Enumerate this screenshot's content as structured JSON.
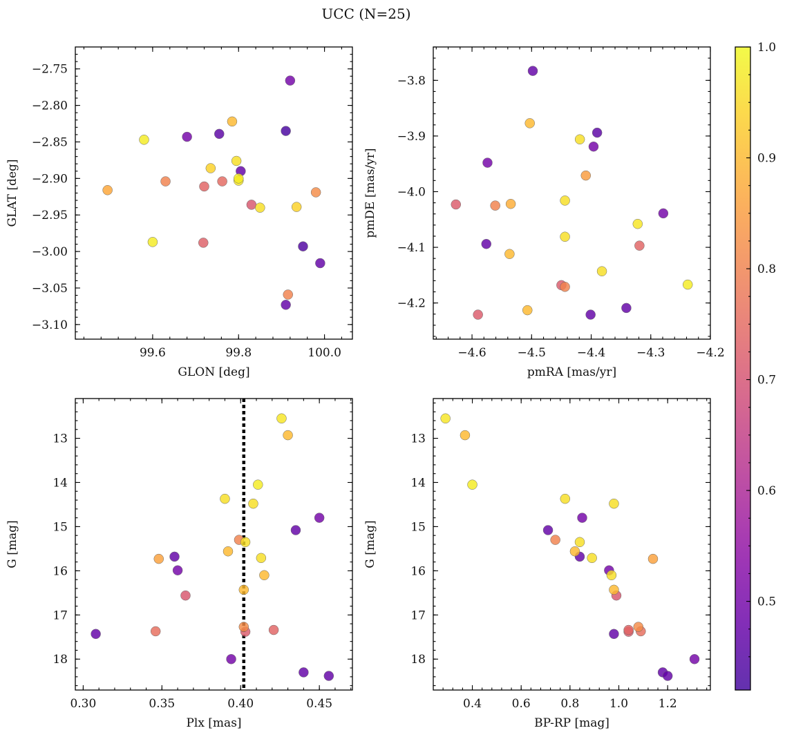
{
  "figure": {
    "title": "UCC (N=25)"
  },
  "colorbar": {
    "ticks": [
      "0.5",
      "0.6",
      "0.7",
      "0.8",
      "0.9",
      "1.0"
    ],
    "tick_values": [
      0.5,
      0.6,
      0.7,
      0.8,
      0.9,
      1.0
    ],
    "range": [
      0.42,
      1.0
    ],
    "colormap": "plasma"
  },
  "chart_data": [
    {
      "type": "scatter",
      "id": "glon-glat",
      "xlabel": "GLON [deg]",
      "ylabel": "GLAT [deg]",
      "xlim": [
        99.42,
        100.065
      ],
      "ylim": [
        -3.12,
        -2.72
      ],
      "y_inverted": false,
      "xticks": [
        99.6,
        99.8,
        100.0
      ],
      "xtick_labels": [
        "99.6",
        "99.8",
        "100.0"
      ],
      "yticks": [
        -2.75,
        -2.8,
        -2.85,
        -2.9,
        -2.95,
        -3.0,
        -3.05,
        -3.1
      ],
      "ytick_labels": [
        "−2.75",
        "−2.80",
        "−2.85",
        "−2.90",
        "−2.95",
        "−3.00",
        "−3.05",
        "−3.10"
      ],
      "x": [
        99.92,
        99.785,
        99.58,
        99.68,
        99.755,
        99.91,
        99.735,
        99.795,
        99.805,
        99.8,
        99.495,
        99.63,
        99.72,
        99.762,
        99.98,
        99.83,
        99.85,
        99.935,
        99.6,
        99.718,
        99.95,
        99.99,
        99.915,
        99.91,
        99.8
      ],
      "y": [
        -2.766,
        -2.822,
        -2.847,
        -2.843,
        -2.839,
        -2.835,
        -2.886,
        -2.876,
        -2.89,
        -2.903,
        -2.916,
        -2.904,
        -2.911,
        -2.904,
        -2.919,
        -2.936,
        -2.94,
        -2.939,
        -2.987,
        -2.988,
        -2.993,
        -3.016,
        -3.059,
        -3.073,
        -2.9
      ],
      "c": [
        0.5,
        0.9,
        0.98,
        0.5,
        0.46,
        0.43,
        0.94,
        0.96,
        0.47,
        0.97,
        0.87,
        0.8,
        0.74,
        0.75,
        0.82,
        0.71,
        0.96,
        0.94,
        0.98,
        0.73,
        0.44,
        0.47,
        0.8,
        0.47,
        0.98
      ]
    },
    {
      "type": "scatter",
      "id": "pmra-pmde",
      "xlabel": "pmRA [mas/yr]",
      "ylabel": "pmDE [mas/yr]",
      "xlim": [
        -4.665,
        -4.2
      ],
      "ylim": [
        -4.265,
        -3.74
      ],
      "y_inverted": false,
      "xticks": [
        -4.6,
        -4.5,
        -4.4,
        -4.3,
        -4.2
      ],
      "xtick_labels": [
        "−4.6",
        "−4.5",
        "−4.4",
        "−4.3",
        "−4.2"
      ],
      "yticks": [
        -3.8,
        -3.9,
        -4.0,
        -4.1,
        -4.2
      ],
      "ytick_labels": [
        "−3.8",
        "−3.9",
        "−4.0",
        "−4.1",
        "−4.2"
      ],
      "x": [
        -4.498,
        -4.503,
        -4.39,
        -4.419,
        -4.396,
        -4.574,
        -4.409,
        -4.627,
        -4.561,
        -4.535,
        -4.444,
        -4.279,
        -4.322,
        -4.444,
        -4.319,
        -4.576,
        -4.537,
        -4.382,
        -4.238,
        -4.45,
        -4.444,
        -4.341,
        -4.507,
        -4.59,
        -4.401
      ],
      "y": [
        -3.783,
        -3.877,
        -3.894,
        -3.906,
        -3.919,
        -3.948,
        -3.971,
        -4.023,
        -4.025,
        -4.022,
        -4.016,
        -4.039,
        -4.058,
        -4.081,
        -4.097,
        -4.094,
        -4.112,
        -4.143,
        -4.167,
        -4.168,
        -4.171,
        -4.209,
        -4.213,
        -4.221,
        -4.221
      ],
      "c": [
        0.47,
        0.9,
        0.46,
        0.96,
        0.5,
        0.5,
        0.85,
        0.72,
        0.8,
        0.88,
        0.96,
        0.5,
        0.97,
        0.96,
        0.74,
        0.47,
        0.9,
        0.96,
        0.98,
        0.72,
        0.8,
        0.47,
        0.9,
        0.72,
        0.47
      ]
    },
    {
      "type": "scatter",
      "id": "plx-g",
      "xlabel": "Plx [mas]",
      "ylabel": "G [mag]",
      "xlim": [
        0.295,
        0.471
      ],
      "ylim": [
        18.7,
        12.1
      ],
      "y_inverted": true,
      "xticks": [
        0.3,
        0.35,
        0.4,
        0.45
      ],
      "xtick_labels": [
        "0.30",
        "0.35",
        "0.40",
        "0.45"
      ],
      "yticks": [
        13,
        14,
        15,
        16,
        17,
        18
      ],
      "ytick_labels": [
        "13",
        "14",
        "15",
        "16",
        "17",
        "18"
      ],
      "vline_x": 0.402,
      "x": [
        0.426,
        0.43,
        0.411,
        0.39,
        0.408,
        0.45,
        0.435,
        0.399,
        0.403,
        0.392,
        0.358,
        0.348,
        0.413,
        0.36,
        0.415,
        0.402,
        0.365,
        0.402,
        0.308,
        0.346,
        0.403,
        0.421,
        0.394,
        0.44,
        0.456
      ],
      "y": [
        12.55,
        12.93,
        14.05,
        14.37,
        14.48,
        14.8,
        15.08,
        15.3,
        15.35,
        15.56,
        15.68,
        15.73,
        15.71,
        15.99,
        16.1,
        16.43,
        16.56,
        17.27,
        17.43,
        17.37,
        17.38,
        17.34,
        18.0,
        18.3,
        18.38
      ],
      "c": [
        0.97,
        0.9,
        0.98,
        0.96,
        0.96,
        0.5,
        0.47,
        0.8,
        0.96,
        0.9,
        0.47,
        0.86,
        0.96,
        0.5,
        0.9,
        0.9,
        0.71,
        0.82,
        0.47,
        0.76,
        0.72,
        0.74,
        0.5,
        0.47,
        0.47
      ]
    },
    {
      "type": "scatter",
      "id": "bprp-g",
      "xlabel": "BP-RP [mag]",
      "ylabel": "G [mag]",
      "xlim": [
        0.24,
        1.375
      ],
      "ylim": [
        18.7,
        12.1
      ],
      "y_inverted": true,
      "xticks": [
        0.4,
        0.6,
        0.8,
        1.0,
        1.2
      ],
      "xtick_labels": [
        "0.4",
        "0.6",
        "0.8",
        "1.0",
        "1.2"
      ],
      "yticks": [
        13,
        14,
        15,
        16,
        17,
        18
      ],
      "ytick_labels": [
        "13",
        "14",
        "15",
        "16",
        "17",
        "18"
      ],
      "x": [
        0.29,
        0.37,
        0.4,
        0.78,
        0.98,
        0.85,
        0.71,
        0.74,
        0.84,
        0.82,
        0.84,
        0.89,
        1.14,
        0.96,
        0.97,
        0.98,
        0.99,
        1.08,
        0.98,
        1.04,
        1.04,
        1.09,
        1.31,
        1.18,
        1.2
      ],
      "y": [
        12.55,
        12.93,
        14.05,
        14.37,
        14.48,
        14.8,
        15.08,
        15.3,
        15.35,
        15.56,
        15.68,
        15.71,
        15.73,
        15.99,
        16.1,
        16.43,
        16.56,
        17.27,
        17.43,
        17.34,
        17.38,
        17.37,
        18.0,
        18.3,
        18.38
      ],
      "c": [
        0.97,
        0.9,
        0.98,
        0.96,
        0.96,
        0.5,
        0.47,
        0.8,
        0.96,
        0.9,
        0.47,
        0.96,
        0.86,
        0.5,
        0.96,
        0.9,
        0.71,
        0.82,
        0.47,
        0.74,
        0.72,
        0.76,
        0.5,
        0.47,
        0.47
      ]
    }
  ]
}
